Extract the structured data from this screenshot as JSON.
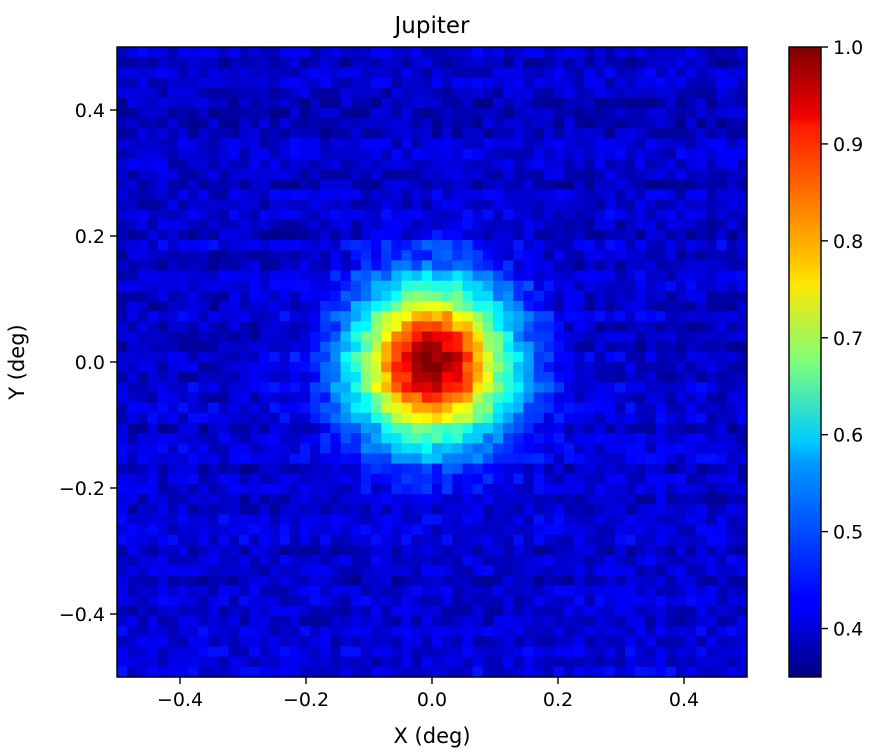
{
  "chart_data": {
    "type": "heatmap",
    "title": "Jupiter",
    "xlabel": "X (deg)",
    "ylabel": "Y (deg)",
    "xlim": [
      -0.5,
      0.5
    ],
    "ylim": [
      -0.5,
      0.5
    ],
    "x_ticks": [
      -0.4,
      -0.2,
      0.0,
      0.2,
      0.4
    ],
    "x_tick_labels": [
      "−0.4",
      "−0.2",
      "0.0",
      "0.2",
      "0.4"
    ],
    "y_ticks": [
      0.4,
      0.2,
      0.0,
      -0.2,
      -0.4
    ],
    "y_tick_labels": [
      "0.4",
      "0.2",
      "0.0",
      "−0.2",
      "−0.4"
    ],
    "colormap": "jet",
    "color_range": [
      0.35,
      1.0
    ],
    "grid_cells": 62,
    "peak": {
      "x": 0.0,
      "y": 0.0,
      "value": 1.0
    },
    "background_level": 0.4,
    "beam_fwhm_deg": 0.2,
    "colorbar": {
      "ticks": [
        1.0,
        0.9,
        0.8,
        0.7,
        0.6,
        0.5,
        0.4
      ],
      "tick_labels": [
        "1.0",
        "0.9",
        "0.8",
        "0.7",
        "0.6",
        "0.5",
        "0.4"
      ]
    },
    "grid": false
  }
}
